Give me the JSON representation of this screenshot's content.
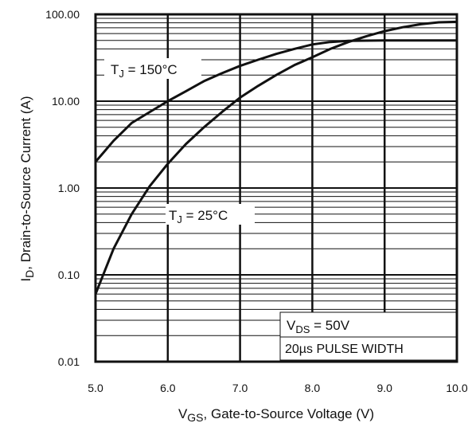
{
  "chart_data": {
    "type": "line",
    "xlabel": {
      "main": "V",
      "sub": "GS",
      "rest": ", Gate-to-Source Voltage (V)"
    },
    "ylabel": {
      "main": "I",
      "sub": "D",
      "rest": ", Drain-to-Source Current   (A)"
    },
    "x_ticks": [
      5.0,
      6.0,
      7.0,
      8.0,
      9.0,
      10.0
    ],
    "x_tick_labels": [
      "5.0",
      "6.0",
      "7.0",
      "8.0",
      "9.0",
      "10.0"
    ],
    "y_ticks": [
      0.01,
      0.1,
      1,
      10,
      100
    ],
    "y_tick_labels": [
      "0.01",
      "0.10",
      "1.00",
      "10.00",
      "100.00"
    ],
    "xlim": [
      5.0,
      10.0
    ],
    "ylim": [
      0.01,
      100
    ],
    "y_scale": "log",
    "grid": true,
    "series": [
      {
        "name_main": "T",
        "name_sub": "J",
        "name_rest": " = 150°C",
        "x": [
          5.0,
          5.25,
          5.5,
          5.75,
          6.0,
          6.25,
          6.5,
          6.75,
          7.0,
          7.25,
          7.5,
          7.75,
          8.0,
          8.25,
          8.5,
          9.0,
          9.5,
          10.0
        ],
        "y": [
          2.0,
          3.5,
          5.6,
          7.5,
          10.0,
          13.0,
          17.0,
          21.0,
          25.5,
          30.0,
          35.0,
          40.0,
          45.0,
          48.0,
          49.5,
          50.0,
          50.0,
          50.0
        ]
      },
      {
        "name_main": "T",
        "name_sub": "J",
        "name_rest": " = 25°C",
        "x": [
          5.0,
          5.25,
          5.5,
          5.75,
          6.0,
          6.25,
          6.5,
          6.75,
          7.0,
          7.25,
          7.5,
          7.75,
          8.0,
          8.25,
          8.5,
          8.75,
          9.0,
          9.25,
          9.5,
          9.75,
          10.0
        ],
        "y": [
          0.06,
          0.2,
          0.5,
          1.05,
          1.9,
          3.2,
          5.0,
          7.5,
          11.0,
          15.0,
          20.0,
          26.0,
          32.0,
          40.0,
          48.0,
          56.0,
          64.0,
          71.0,
          77.0,
          81.0,
          82.0
        ]
      }
    ],
    "annotations": {
      "vds": {
        "main": "V",
        "sub": "DS",
        "rest": " = 50V"
      },
      "pulse": "20µs PULSE WIDTH"
    }
  }
}
